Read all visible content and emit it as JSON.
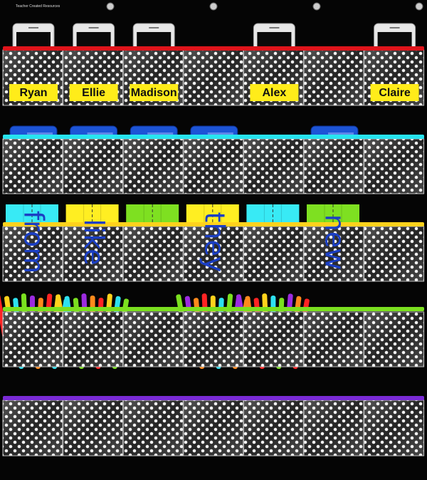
{
  "brand": "Teacher Created Resources",
  "name_cards": [
    "Ryan",
    "Ellie",
    "Madison",
    "Alex",
    "Claire"
  ],
  "word_cards": [
    "from",
    "like",
    "they",
    "new"
  ]
}
